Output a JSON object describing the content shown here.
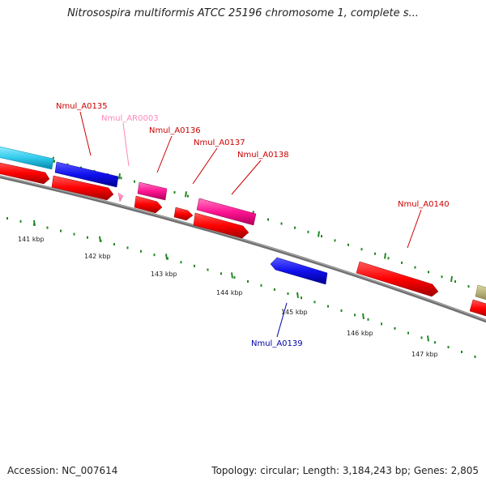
{
  "title": "Nitrosospira multiformis ATCC 25196 chromosome 1, complete s...",
  "footer": {
    "accession_label": "Accession:",
    "accession": "NC_007614",
    "topology_label": "Topology:",
    "topology": "circular",
    "length_label": "Length:",
    "length": "3,184,243 bp",
    "genes_label": "Genes:",
    "genes": "2,805"
  },
  "colors": {
    "backbone": "#808080",
    "cds_forward": "#ff0000",
    "cds_forward_dark": "#cc0000",
    "cds_reverse": "#1010ee",
    "rna_pink": "#ff66aa",
    "rna_magenta": "#ff1493",
    "misc_cyan": "#33ccee",
    "olive": "#b8b070",
    "tick_green": "#228822",
    "label_red": "#cc0000",
    "label_pink": "#ff88bb",
    "label_blue": "#0000aa"
  },
  "scale_ticks": [
    "141 kbp",
    "142 kbp",
    "143 kbp",
    "144 kbp",
    "145 kbp",
    "146 kbp",
    "147 kbp"
  ],
  "gene_labels": [
    {
      "name": "Nmul_A0135",
      "color": "label_red"
    },
    {
      "name": "Nmul_AR0003",
      "color": "label_pink"
    },
    {
      "name": "Nmul_A0136",
      "color": "label_red"
    },
    {
      "name": "Nmul_A0137",
      "color": "label_red"
    },
    {
      "name": "Nmul_A0138",
      "color": "label_red"
    },
    {
      "name": "Nmul_A0140",
      "color": "label_red"
    },
    {
      "name": "Nmul_A0139",
      "color": "label_blue"
    }
  ]
}
